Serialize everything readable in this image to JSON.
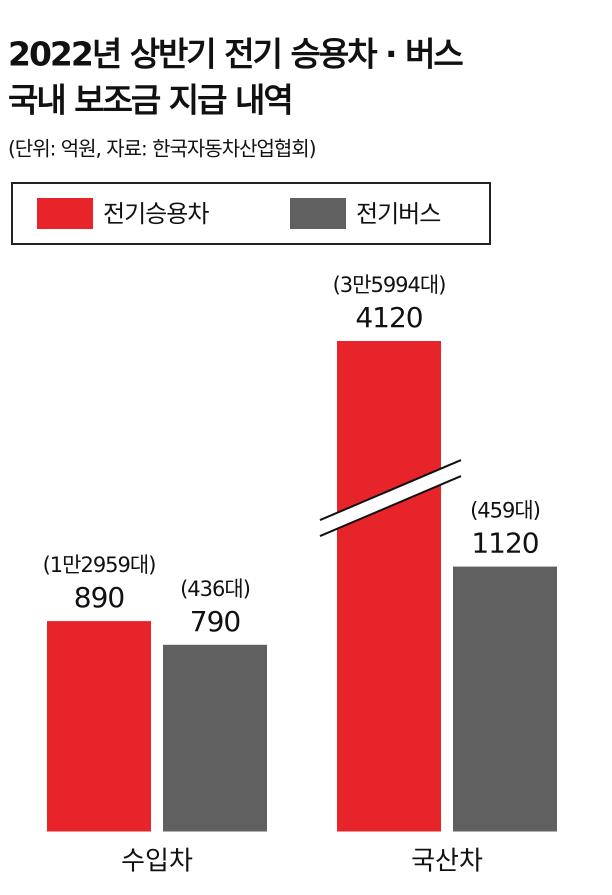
{
  "chart_data": {
    "type": "bar",
    "title": [
      "2022년 상반기 전기 승용차 · 버스",
      "국내 보조금 지급 내역"
    ],
    "subtitle": "(단위: 억원, 자료: 한국자동차산업협회)",
    "categories": [
      "수입차",
      "국산차"
    ],
    "series": [
      {
        "name": "전기승용차",
        "color": "#e8242b",
        "values": [
          890,
          4120
        ],
        "annotations": [
          "(1만2959대)",
          "(3만5994대)"
        ]
      },
      {
        "name": "전기버스",
        "color": "#606060",
        "values": [
          790,
          1120
        ],
        "annotations": [
          "(436대)",
          "(459대)"
        ]
      }
    ],
    "ylim": [
      0,
      4120
    ],
    "axis_break": [
      1350,
      3550
    ]
  }
}
